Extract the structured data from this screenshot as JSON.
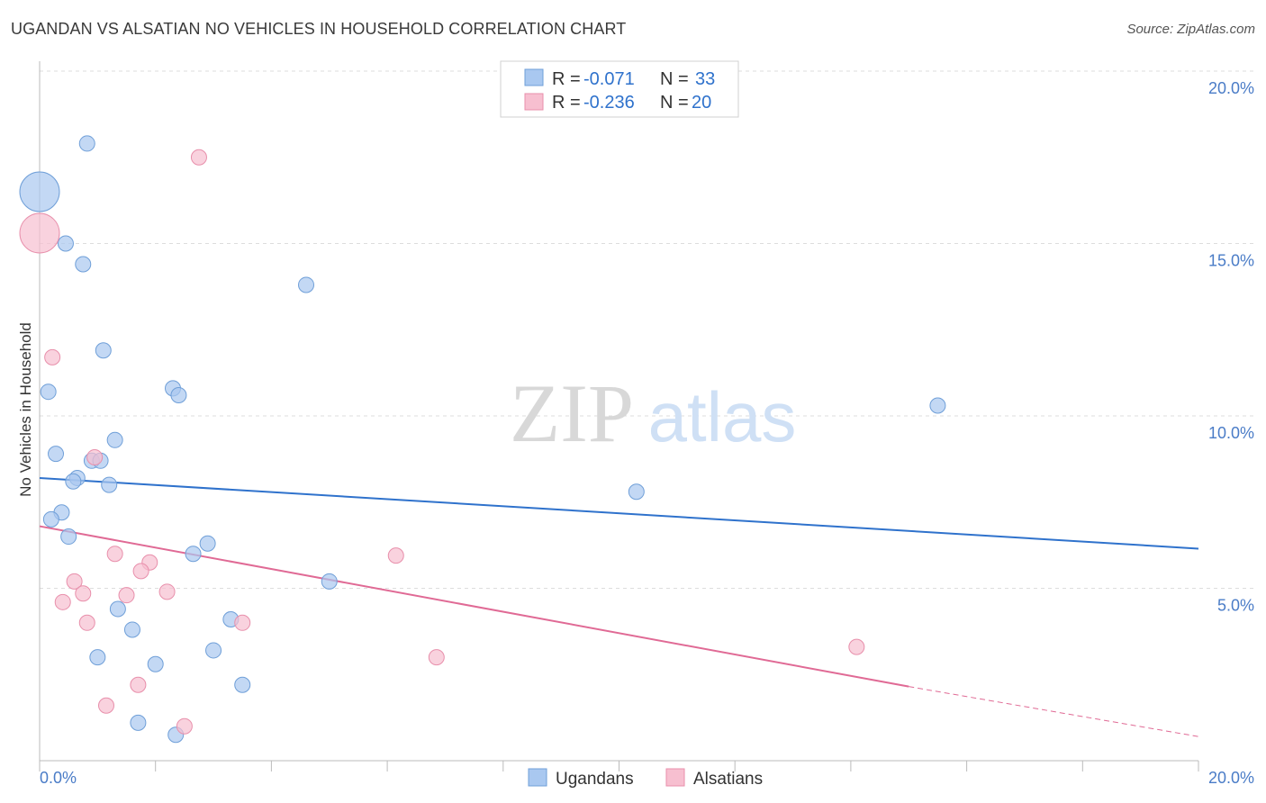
{
  "title": "UGANDAN VS ALSATIAN NO VEHICLES IN HOUSEHOLD CORRELATION CHART",
  "source": "Source: ZipAtlas.com",
  "watermark": {
    "zip": "ZIP",
    "atlas": "atlas"
  },
  "colors": {
    "blue_fill": "#a9c8f0",
    "blue_stroke": "#6f9fd8",
    "blue_line": "#2f72cc",
    "pink_fill": "#f7bfd0",
    "pink_stroke": "#e88fab",
    "pink_line": "#e06a95",
    "label_blue": "#4a7cc7"
  },
  "legend": {
    "row1": {
      "r_label": "R =",
      "r_value": "-0.071",
      "n_label": "N =",
      "n_value": "33"
    },
    "row2": {
      "r_label": "R =",
      "r_value": "-0.236",
      "n_label": "N =",
      "n_value": "20"
    }
  },
  "chart_data": {
    "type": "scatter",
    "title": "UGANDAN VS ALSATIAN NO VEHICLES IN HOUSEHOLD CORRELATION CHART",
    "xlabel": "",
    "ylabel": "No Vehicles in Household",
    "xlim": [
      0,
      20
    ],
    "ylim": [
      0,
      20
    ],
    "x_tick_labels": {
      "min": "0.0%",
      "max": "20.0%"
    },
    "y_ticks": [
      5,
      10,
      15,
      20
    ],
    "y_tick_labels": [
      "5.0%",
      "10.0%",
      "15.0%",
      "20.0%"
    ],
    "series": [
      {
        "name": "Ugandans",
        "color": "#a9c8f0",
        "points": [
          {
            "x": 0.0,
            "y": 16.5,
            "big": true
          },
          {
            "x": 0.82,
            "y": 17.9
          },
          {
            "x": 0.45,
            "y": 15.0
          },
          {
            "x": 0.75,
            "y": 14.4
          },
          {
            "x": 4.6,
            "y": 13.8
          },
          {
            "x": 1.1,
            "y": 11.9
          },
          {
            "x": 0.15,
            "y": 10.7
          },
          {
            "x": 2.3,
            "y": 10.8
          },
          {
            "x": 2.4,
            "y": 10.6
          },
          {
            "x": 15.5,
            "y": 10.3
          },
          {
            "x": 1.3,
            "y": 9.3
          },
          {
            "x": 0.28,
            "y": 8.9
          },
          {
            "x": 0.9,
            "y": 8.7
          },
          {
            "x": 1.05,
            "y": 8.7
          },
          {
            "x": 0.65,
            "y": 8.2
          },
          {
            "x": 0.58,
            "y": 8.1
          },
          {
            "x": 1.2,
            "y": 8.0
          },
          {
            "x": 10.3,
            "y": 7.8
          },
          {
            "x": 0.38,
            "y": 7.2
          },
          {
            "x": 0.2,
            "y": 7.0
          },
          {
            "x": 0.5,
            "y": 6.5
          },
          {
            "x": 2.9,
            "y": 6.3
          },
          {
            "x": 2.65,
            "y": 6.0
          },
          {
            "x": 5.0,
            "y": 5.2
          },
          {
            "x": 1.35,
            "y": 4.4
          },
          {
            "x": 3.3,
            "y": 4.1
          },
          {
            "x": 1.6,
            "y": 3.8
          },
          {
            "x": 3.0,
            "y": 3.2
          },
          {
            "x": 1.0,
            "y": 3.0
          },
          {
            "x": 2.0,
            "y": 2.8
          },
          {
            "x": 3.5,
            "y": 2.2
          },
          {
            "x": 1.7,
            "y": 1.1
          },
          {
            "x": 2.35,
            "y": 0.75
          }
        ],
        "trend": {
          "x1": 0,
          "y1": 8.2,
          "x2": 20,
          "y2": 6.15
        }
      },
      {
        "name": "Alsatians",
        "color": "#f7bfd0",
        "points": [
          {
            "x": 0.0,
            "y": 15.3,
            "big": true
          },
          {
            "x": 2.75,
            "y": 17.5
          },
          {
            "x": 0.22,
            "y": 11.7
          },
          {
            "x": 0.95,
            "y": 8.8
          },
          {
            "x": 1.3,
            "y": 6.0
          },
          {
            "x": 6.15,
            "y": 5.95
          },
          {
            "x": 1.9,
            "y": 5.75
          },
          {
            "x": 1.75,
            "y": 5.5
          },
          {
            "x": 0.6,
            "y": 5.2
          },
          {
            "x": 0.75,
            "y": 4.85
          },
          {
            "x": 2.2,
            "y": 4.9
          },
          {
            "x": 1.5,
            "y": 4.8
          },
          {
            "x": 0.4,
            "y": 4.6
          },
          {
            "x": 0.82,
            "y": 4.0
          },
          {
            "x": 3.5,
            "y": 4.0
          },
          {
            "x": 14.1,
            "y": 3.3
          },
          {
            "x": 6.85,
            "y": 3.0
          },
          {
            "x": 1.7,
            "y": 2.2
          },
          {
            "x": 1.15,
            "y": 1.6
          },
          {
            "x": 2.5,
            "y": 1.0
          }
        ],
        "trend": {
          "x1": 0,
          "y1": 6.8,
          "x2": 15.0,
          "y2": 2.15,
          "dash_x2": 20,
          "dash_y2": 0.7
        }
      }
    ]
  }
}
